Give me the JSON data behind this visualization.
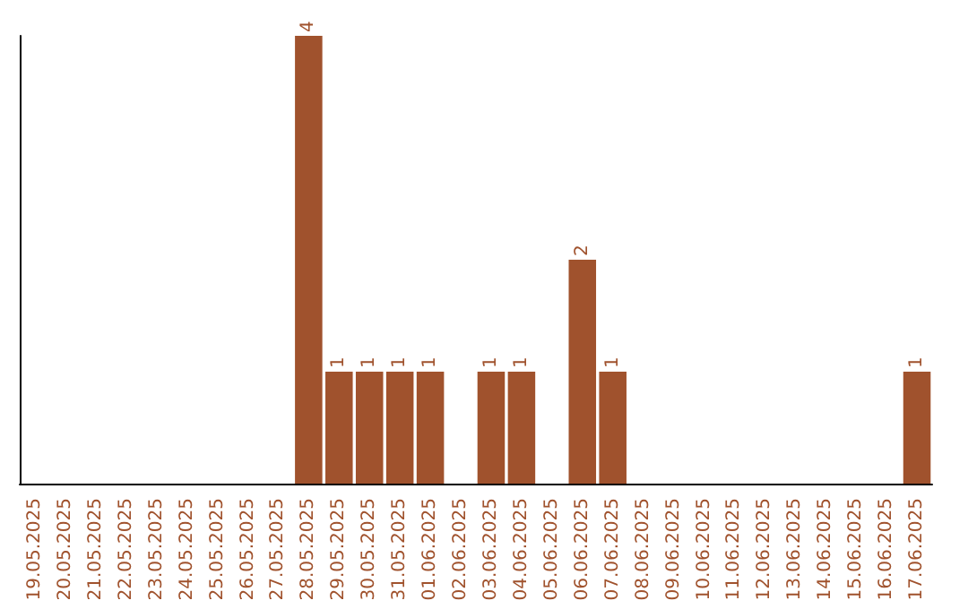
{
  "chart_data": {
    "type": "bar",
    "categories": [
      "19.05.2025",
      "20.05.2025",
      "21.05.2025",
      "22.05.2025",
      "23.05.2025",
      "24.05.2025",
      "25.05.2025",
      "26.05.2025",
      "27.05.2025",
      "28.05.2025",
      "29.05.2025",
      "30.05.2025",
      "31.05.2025",
      "01.06.2025",
      "02.06.2025",
      "03.06.2025",
      "04.06.2025",
      "05.06.2025",
      "06.06.2025",
      "07.06.2025",
      "08.06.2025",
      "09.06.2025",
      "10.06.2025",
      "11.06.2025",
      "12.06.2025",
      "13.06.2025",
      "14.06.2025",
      "15.06.2025",
      "16.06.2025",
      "17.06.2025"
    ],
    "values": [
      0,
      0,
      0,
      0,
      0,
      0,
      0,
      0,
      0,
      4,
      1,
      1,
      1,
      1,
      0,
      1,
      1,
      0,
      2,
      1,
      0,
      0,
      0,
      0,
      0,
      0,
      0,
      0,
      0,
      1
    ],
    "value_labels": [
      null,
      null,
      null,
      null,
      null,
      null,
      null,
      null,
      null,
      "4",
      "1",
      "1",
      "1",
      "1",
      null,
      "1",
      "1",
      null,
      "2",
      "1",
      null,
      null,
      null,
      null,
      null,
      null,
      null,
      null,
      null,
      "1"
    ],
    "color": "#a0522d",
    "grid": false,
    "tick_labels": "x"
  }
}
